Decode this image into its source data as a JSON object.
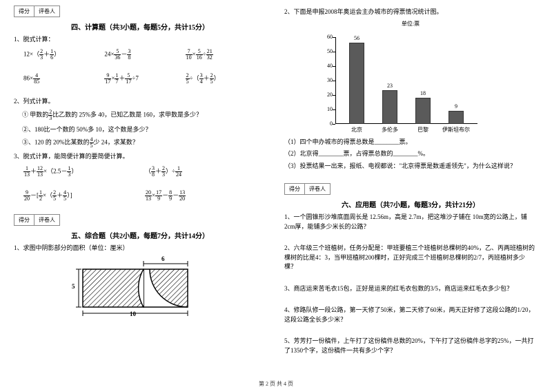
{
  "left": {
    "scorebox": {
      "l1": "得分",
      "l2": "评卷人"
    },
    "sec4_title": "四、计算题（共3小题，每题5分，共计15分）",
    "q1": "1、脱式计算：",
    "q1r1": {
      "a": {
        "pre": "12×（",
        "f1n": "2",
        "f1d": "3",
        "mid": "＋",
        "f2n": "1",
        "f2d": "6",
        "post": "）"
      },
      "b": {
        "pre": "24×",
        "f1n": "5",
        "f1d": "36",
        "mid": "－",
        "f2n": "3",
        "f2d": "8",
        "post": ""
      },
      "c": {
        "f1n": "7",
        "f1d": "10",
        "mid1": "×",
        "f2n": "5",
        "f2d": "16",
        "mid2": "÷",
        "f3n": "21",
        "f3d": "32"
      }
    },
    "q1r2": {
      "a": {
        "pre": "86×",
        "f1n": "4",
        "f1d": "85"
      },
      "b": {
        "f1n": "9",
        "f1d": "17",
        "mid1": "×",
        "f2n": "1",
        "f2d": "7",
        "mid2": "＋",
        "f3n": "5",
        "f3d": "17",
        "post": "÷7"
      },
      "c": {
        "f1n": "2",
        "f1d": "5",
        "mid": "÷（",
        "f2n": "3",
        "f2d": "4",
        "mid2": "＋",
        "f3n": "2",
        "f3d": "5",
        "post": "）"
      }
    },
    "q2": "2、列式计算。",
    "q2a_p1": "① 甲数的",
    "q2a_fn": "2",
    "q2a_fd": "3",
    "q2a_p2": "比乙数的 25%多 40，已知乙数是 160，求甲数是多少？",
    "q2b": "②、180比一个数的 50%多 10，这个数是多少？",
    "q2c_p1": "③、120 的 20%比某数的",
    "q2c_fn": "4",
    "q2c_fd": "5",
    "q2c_p2": "少 24，求某数？",
    "q3": "3、脱式计算，能简便计算的要简便计算。",
    "q3r1": {
      "a": {
        "f1n": "1",
        "f1d": "13",
        "mid1": "＋",
        "f2n": "12",
        "f2d": "13",
        "mid2": "×（2.5－",
        "f3n": "1",
        "f3d": "3",
        "post": "）"
      },
      "b": {
        "pre": "（",
        "f1n": "3",
        "f1d": "8",
        "mid1": "＋",
        "f2n": "2",
        "f2d": "3",
        "mid2": "）÷",
        "f3n": "1",
        "f3d": "24"
      }
    },
    "q3r2": {
      "a": {
        "f1n": "9",
        "f1d": "20",
        "mid1": "－[",
        "f2n": "1",
        "f2d": "2",
        "mid2": "×（",
        "f3n": "2",
        "f3d": "5",
        "mid3": "＋",
        "f4n": "4",
        "f4d": "5",
        "post": "）]"
      },
      "b": {
        "f1n": "20",
        "f1d": "13",
        "mid1": "×",
        "f2n": "17",
        "f2d": "9",
        "mid2": "－",
        "f3n": "8",
        "f3d": "9",
        "mid3": "－",
        "f4n": "13",
        "f4d": "20"
      }
    },
    "sec5_title": "五、综合题（共2小题，每题7分，共计14分）",
    "q5_1": "1、求图中阴影部分的面积（单位：厘米）",
    "shape": {
      "dim6": "6",
      "dim5": "5",
      "dim10": "10"
    }
  },
  "right": {
    "q2": "2、下面是申报2008年奥运会主办城市的得票情况统计图。",
    "chart": {
      "unit": "单位:票",
      "ymax": 60,
      "ystep": 10,
      "bars": [
        {
          "label": "北京",
          "value": 56,
          "color": "#5a5a5a"
        },
        {
          "label": "多伦多",
          "value": 23,
          "color": "#5a5a5a"
        },
        {
          "label": "巴黎",
          "value": 18,
          "color": "#5a5a5a"
        },
        {
          "label": "伊斯坦布尔",
          "value": 9,
          "color": "#5a5a5a"
        }
      ],
      "ylabels": [
        "0",
        "10",
        "20",
        "30",
        "40",
        "50",
        "60"
      ]
    },
    "sub1": "（1）四个申办城市的得票总数是________票。",
    "sub2": "（2）北京得________票，占得票总数的________%。",
    "sub3": "（3）投票结果一出来，报纸、电视都说：\"北京得票是数遥遥领先\"，为什么这样说？",
    "scorebox": {
      "l1": "得分",
      "l2": "评卷人"
    },
    "sec6_title": "六、应用题（共7小题，每题3分，共计21分）",
    "a1": "1、一个圆锥形沙堆底面周长是 12.56m，高是 2.7m，把这堆沙子铺在 10m宽的公路上，铺2cm厚，能铺多少米长的公路？",
    "a2": "2、六年级三个班植树，任务分配是：甲班要植三个班植树总棵树的40%，乙、丙两班植树的棵树的比是4：3，当甲班植树200棵时，正好完成三个班植树总棵树的2/7，丙班植树多少棵？",
    "a3": "3、商店运来苦毛衣15包，正好是运来的红毛衣包数的3/5，商店运来红毛衣多少包？",
    "a4": "4、修路队修一段公路，第一天修了50米，第二天修了60米，两天正好修了这段公路的1/20，这段公路全长多少米？",
    "a5": "5、芳芳打一份稿件，上午打了这份稿件总数的20%，下午打了这份稿件总字的25%，一共打了1350个字，这份稿件一共有多少个字？"
  },
  "footer": "第 2 页 共 4 页"
}
